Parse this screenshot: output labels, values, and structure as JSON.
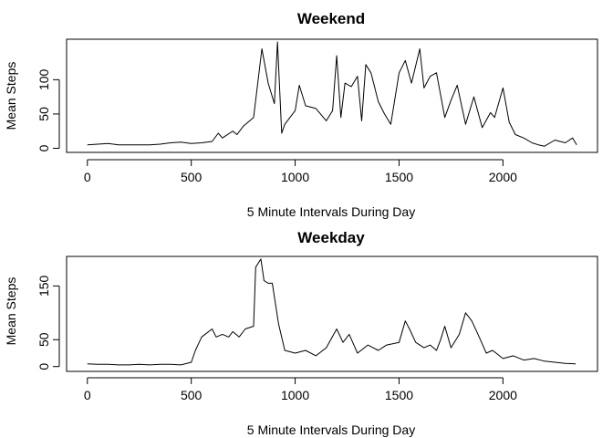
{
  "chart_data": [
    {
      "type": "line",
      "title": "Weekend",
      "xlabel": "5 Minute Intervals During Day",
      "ylabel": "Mean Steps",
      "xlim": [
        -100,
        2455
      ],
      "ylim": [
        -6,
        159
      ],
      "xticks": [
        0,
        500,
        1000,
        1500,
        2000
      ],
      "yticks": [
        0,
        50,
        100
      ],
      "grid": false,
      "series": [
        {
          "color": "#000000",
          "x": [
            0,
            50,
            100,
            150,
            200,
            250,
            300,
            350,
            400,
            450,
            500,
            550,
            600,
            630,
            650,
            700,
            720,
            750,
            800,
            840,
            870,
            900,
            915,
            935,
            950,
            1000,
            1020,
            1050,
            1100,
            1150,
            1180,
            1200,
            1220,
            1240,
            1270,
            1300,
            1320,
            1340,
            1365,
            1400,
            1430,
            1460,
            1500,
            1530,
            1560,
            1600,
            1620,
            1650,
            1680,
            1720,
            1750,
            1780,
            1820,
            1860,
            1900,
            1940,
            1960,
            2000,
            2030,
            2060,
            2100,
            2140,
            2170,
            2200,
            2250,
            2300,
            2335,
            2355
          ],
          "values": [
            5,
            6,
            7,
            5,
            5,
            5,
            5,
            6,
            8,
            9,
            7,
            8,
            10,
            22,
            15,
            25,
            20,
            32,
            45,
            145,
            95,
            65,
            155,
            22,
            35,
            55,
            92,
            62,
            58,
            40,
            55,
            135,
            45,
            95,
            90,
            105,
            40,
            122,
            110,
            68,
            50,
            35,
            110,
            128,
            95,
            145,
            88,
            105,
            110,
            45,
            70,
            92,
            35,
            75,
            30,
            52,
            45,
            88,
            38,
            20,
            15,
            8,
            5,
            3,
            12,
            8,
            15,
            5
          ]
        }
      ]
    },
    {
      "type": "line",
      "title": "Weekday",
      "xlabel": "5 Minute Intervals During Day",
      "ylabel": "Mean Steps",
      "xlim": [
        -100,
        2455
      ],
      "ylim": [
        -9,
        205
      ],
      "xticks": [
        0,
        500,
        1000,
        1500,
        2000
      ],
      "yticks": [
        0,
        50,
        150
      ],
      "grid": false,
      "series": [
        {
          "color": "#000000",
          "x": [
            0,
            50,
            100,
            150,
            200,
            250,
            300,
            350,
            400,
            450,
            500,
            520,
            550,
            600,
            620,
            650,
            680,
            700,
            730,
            760,
            800,
            810,
            835,
            850,
            870,
            890,
            920,
            950,
            1000,
            1050,
            1100,
            1150,
            1200,
            1230,
            1260,
            1300,
            1350,
            1400,
            1440,
            1500,
            1530,
            1550,
            1580,
            1620,
            1650,
            1680,
            1700,
            1720,
            1750,
            1790,
            1820,
            1850,
            1880,
            1920,
            1950,
            2000,
            2050,
            2100,
            2150,
            2200,
            2250,
            2300,
            2350
          ],
          "values": [
            5,
            4,
            4,
            3,
            3,
            4,
            3,
            4,
            4,
            3,
            8,
            30,
            55,
            70,
            55,
            60,
            55,
            65,
            55,
            70,
            75,
            185,
            200,
            160,
            155,
            155,
            80,
            30,
            25,
            30,
            20,
            35,
            70,
            45,
            60,
            25,
            40,
            30,
            40,
            45,
            85,
            70,
            45,
            35,
            40,
            30,
            50,
            75,
            35,
            60,
            100,
            85,
            60,
            25,
            30,
            15,
            20,
            12,
            15,
            10,
            8,
            6,
            5
          ]
        }
      ]
    }
  ]
}
